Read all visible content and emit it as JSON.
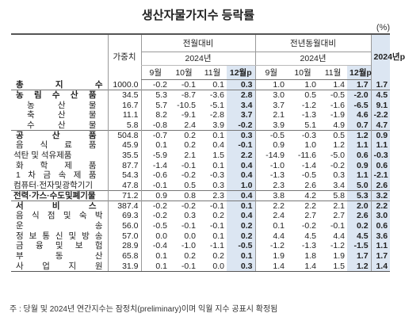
{
  "title": "생산자물가지수 등락률",
  "unit": "(%)",
  "header": {
    "weight": "가중치",
    "mom_group": "전월대비",
    "yoy_group": "전년동월대비",
    "year_2024": "2024년",
    "annual_2024": "2024년p",
    "months": [
      "9월",
      "10월",
      "11월",
      "12월p"
    ]
  },
  "rows": [
    {
      "name": "총 지 수",
      "weight": "1000.0",
      "mom": [
        "-0.2",
        "-0.1",
        "0.1",
        "0.3"
      ],
      "yoy": [
        "1.0",
        "1.0",
        "1.4",
        "1.7"
      ],
      "annual": "1.7"
    },
    {
      "name": "농 림 수 산 품",
      "weight": "34.5",
      "mom": [
        "5.3",
        "-8.7",
        "-3.6",
        "2.8"
      ],
      "yoy": [
        "3.0",
        "0.5",
        "-0.5",
        "-2.0"
      ],
      "annual": "4.5"
    },
    {
      "name": "농 산 물",
      "weight": "16.7",
      "mom": [
        "5.7",
        "-10.5",
        "-5.1",
        "3.4"
      ],
      "yoy": [
        "3.7",
        "-1.2",
        "-1.6",
        "-6.5"
      ],
      "annual": "9.1"
    },
    {
      "name": "축 산 물",
      "weight": "11.1",
      "mom": [
        "8.2",
        "-9.1",
        "-2.8",
        "3.7"
      ],
      "yoy": [
        "2.1",
        "-1.3",
        "-1.9",
        "4.6"
      ],
      "annual": "-2.2"
    },
    {
      "name": "수 산 물",
      "weight": "5.8",
      "mom": [
        "-0.8",
        "2.4",
        "3.9",
        "-0.2"
      ],
      "yoy": [
        "3.9",
        "5.1",
        "4.9",
        "0.7"
      ],
      "annual": "4.7"
    },
    {
      "name": "공 산 품",
      "weight": "504.8",
      "mom": [
        "-0.7",
        "0.2",
        "0.1",
        "0.3"
      ],
      "yoy": [
        "-0.5",
        "-0.3",
        "0.5",
        "1.2"
      ],
      "annual": "0.9"
    },
    {
      "name": "음 식 료 품",
      "weight": "45.9",
      "mom": [
        "0.1",
        "0.2",
        "0.4",
        "-0.1"
      ],
      "yoy": [
        "0.9",
        "1.0",
        "1.2",
        "1.1"
      ],
      "annual": "1.1"
    },
    {
      "name": "석탄 및 석유제품",
      "weight": "35.5",
      "mom": [
        "-5.9",
        "2.1",
        "1.5",
        "2.2"
      ],
      "yoy": [
        "-14.9",
        "-11.6",
        "-5.0",
        "0.6"
      ],
      "annual": "-0.3"
    },
    {
      "name": "화 학 제 품",
      "weight": "87.7",
      "mom": [
        "-1.4",
        "-0.1",
        "0.1",
        "0.4"
      ],
      "yoy": [
        "-1.0",
        "-1.4",
        "-0.2",
        "0.9"
      ],
      "annual": "0.6"
    },
    {
      "name": "1 차 금 속 제 품",
      "weight": "54.3",
      "mom": [
        "-0.6",
        "-0.2",
        "-0.3",
        "0.4"
      ],
      "yoy": [
        "-1.3",
        "-0.5",
        "0.3",
        "1.1"
      ],
      "annual": "-2.1"
    },
    {
      "name": "컴퓨터·전자및광학기기",
      "weight": "47.8",
      "mom": [
        "-0.1",
        "0.5",
        "0.3",
        "1.0"
      ],
      "yoy": [
        "2.3",
        "2.6",
        "3.4",
        "5.0"
      ],
      "annual": "2.6"
    },
    {
      "name": "전력·가스·수도및폐기물",
      "weight": "71.2",
      "mom": [
        "0.9",
        "0.8",
        "2.3",
        "0.4"
      ],
      "yoy": [
        "3.8",
        "4.2",
        "5.8",
        "5.3"
      ],
      "annual": "3.2"
    },
    {
      "name": "서 비 스",
      "weight": "387.4",
      "mom": [
        "-0.2",
        "-0.2",
        "-0.1",
        "0.1"
      ],
      "yoy": [
        "2.2",
        "2.2",
        "2.1",
        "2.0"
      ],
      "annual": "2.2"
    },
    {
      "name": "음 식 점 및 숙 박",
      "weight": "69.3",
      "mom": [
        "-0.2",
        "0.3",
        "0.2",
        "0.4"
      ],
      "yoy": [
        "2.4",
        "2.7",
        "2.7",
        "2.6"
      ],
      "annual": "3.0"
    },
    {
      "name": "운 송",
      "weight": "56.0",
      "mom": [
        "-0.5",
        "-0.1",
        "-0.1",
        "0.2"
      ],
      "yoy": [
        "0.1",
        "-0.2",
        "-0.1",
        "0.2"
      ],
      "annual": "0.6"
    },
    {
      "name": "정 보 통 신 및 방 송",
      "weight": "57.0",
      "mom": [
        "0.0",
        "0.0",
        "0.1",
        "0.2"
      ],
      "yoy": [
        "4.4",
        "4.5",
        "4.4",
        "4.5"
      ],
      "annual": "3.6"
    },
    {
      "name": "금 융 및 보 험",
      "weight": "28.9",
      "mom": [
        "-0.4",
        "-1.0",
        "-1.1",
        "-0.5"
      ],
      "yoy": [
        "-1.2",
        "-1.3",
        "-1.2",
        "-1.5"
      ],
      "annual": "1.1"
    },
    {
      "name": "부 동 산",
      "weight": "65.8",
      "mom": [
        "0.1",
        "0.2",
        "0.2",
        "0.1"
      ],
      "yoy": [
        "1.9",
        "1.8",
        "1.9",
        "1.7"
      ],
      "annual": "1.7"
    },
    {
      "name": "사 업 지 원",
      "weight": "31.9",
      "mom": [
        "0.1",
        "-0.1",
        "0.0",
        "0.3"
      ],
      "yoy": [
        "1.4",
        "1.4",
        "1.5",
        "1.2"
      ],
      "annual": "1.4"
    }
  ],
  "footnote": "주 : 당월 및 2024년 연간지수는 잠정치(preliminary)이며 익월 지수 공표시 확정됨"
}
